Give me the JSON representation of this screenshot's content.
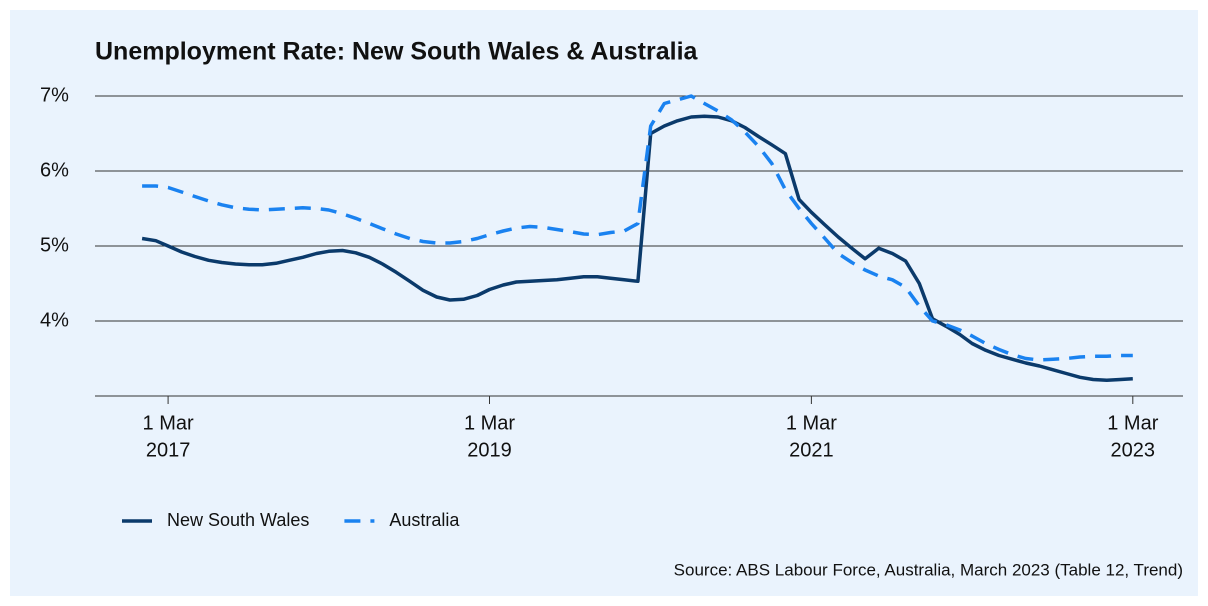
{
  "chart_data": {
    "type": "line",
    "title": "Unemployment Rate: New South Wales & Australia",
    "source": "Source: ABS Labour Force, Australia, March 2023 (Table 12, Trend)",
    "x": [
      "2017-01-01",
      "2017-02-01",
      "2017-03-01",
      "2017-04-01",
      "2017-05-01",
      "2017-06-01",
      "2017-07-01",
      "2017-08-01",
      "2017-09-01",
      "2017-10-01",
      "2017-11-01",
      "2017-12-01",
      "2018-01-01",
      "2018-02-01",
      "2018-03-01",
      "2018-04-01",
      "2018-05-01",
      "2018-06-01",
      "2018-07-01",
      "2018-08-01",
      "2018-09-01",
      "2018-10-01",
      "2018-11-01",
      "2018-12-01",
      "2019-01-01",
      "2019-02-01",
      "2019-03-01",
      "2019-04-01",
      "2019-05-01",
      "2019-06-01",
      "2019-07-01",
      "2019-08-01",
      "2019-09-01",
      "2019-10-01",
      "2019-11-01",
      "2019-12-01",
      "2020-01-01",
      "2020-02-01",
      "2020-03-01",
      "2020-04-01",
      "2020-05-01",
      "2020-06-01",
      "2020-07-01",
      "2020-08-01",
      "2020-09-01",
      "2020-10-01",
      "2020-11-01",
      "2020-12-01",
      "2021-01-01",
      "2021-02-01",
      "2021-03-01",
      "2021-04-01",
      "2021-05-01",
      "2021-06-01",
      "2021-07-01",
      "2021-08-01",
      "2021-09-01",
      "2021-10-01",
      "2021-11-01",
      "2021-12-01",
      "2022-01-01",
      "2022-02-01",
      "2022-03-01",
      "2022-04-01",
      "2022-05-01",
      "2022-06-01",
      "2022-07-01",
      "2022-08-01",
      "2022-09-01",
      "2022-10-01",
      "2022-11-01",
      "2022-12-01",
      "2023-01-01",
      "2023-02-01",
      "2023-03-01"
    ],
    "series": [
      {
        "name": "New South Wales",
        "color": "#0b3a6b",
        "dash": false,
        "values": [
          5.1,
          5.07,
          5.0,
          4.92,
          4.86,
          4.81,
          4.78,
          4.76,
          4.75,
          4.75,
          4.77,
          4.81,
          4.85,
          4.9,
          4.93,
          4.94,
          4.91,
          4.85,
          4.76,
          4.65,
          4.53,
          4.41,
          4.32,
          4.28,
          4.29,
          4.34,
          4.42,
          4.48,
          4.52,
          4.53,
          4.54,
          4.55,
          4.57,
          4.59,
          4.59,
          4.57,
          4.55,
          4.53,
          6.5,
          6.6,
          6.67,
          6.72,
          6.73,
          6.72,
          6.67,
          6.58,
          6.46,
          6.35,
          6.23,
          5.62,
          5.45,
          5.28,
          5.12,
          4.97,
          4.83,
          4.97,
          4.9,
          4.8,
          4.5,
          4.03,
          3.93,
          3.82,
          3.7,
          3.61,
          3.54,
          3.49,
          3.44,
          3.4,
          3.35,
          3.3,
          3.25,
          3.22,
          3.21,
          3.22,
          3.23
        ]
      },
      {
        "name": "Australia",
        "color": "#1a82f0",
        "dash": true,
        "values": [
          5.8,
          5.8,
          5.78,
          5.72,
          5.66,
          5.6,
          5.55,
          5.51,
          5.49,
          5.48,
          5.49,
          5.5,
          5.51,
          5.5,
          5.48,
          5.43,
          5.37,
          5.3,
          5.23,
          5.16,
          5.1,
          5.06,
          5.04,
          5.04,
          5.06,
          5.1,
          5.15,
          5.2,
          5.24,
          5.26,
          5.25,
          5.22,
          5.19,
          5.16,
          5.15,
          5.18,
          5.2,
          5.3,
          6.6,
          6.9,
          6.95,
          7.0,
          6.9,
          6.8,
          6.68,
          6.52,
          6.33,
          6.1,
          5.75,
          5.5,
          5.3,
          5.1,
          4.9,
          4.78,
          4.68,
          4.6,
          4.55,
          4.45,
          4.2,
          4.0,
          3.95,
          3.88,
          3.8,
          3.7,
          3.62,
          3.55,
          3.5,
          3.48,
          3.49,
          3.5,
          3.52,
          3.53,
          3.53,
          3.54,
          3.54
        ]
      }
    ],
    "xlim": [
      "2016-09-16",
      "2023-06-23"
    ],
    "xticks": [
      {
        "value": "2017-03-01",
        "label": [
          "1 Mar",
          "2017"
        ]
      },
      {
        "value": "2019-03-01",
        "label": [
          "1 Mar",
          "2019"
        ]
      },
      {
        "value": "2021-03-01",
        "label": [
          "1 Mar",
          "2021"
        ]
      },
      {
        "value": "2023-03-01",
        "label": [
          "1 Mar",
          "2023"
        ]
      }
    ],
    "ylim": [
      3,
      7
    ],
    "yticks": [
      {
        "value": 4,
        "label": "4%"
      },
      {
        "value": 5,
        "label": "5%"
      },
      {
        "value": 6,
        "label": "6%"
      },
      {
        "value": 7,
        "label": "7%"
      }
    ],
    "grid": true,
    "legend": "bottom-left"
  }
}
